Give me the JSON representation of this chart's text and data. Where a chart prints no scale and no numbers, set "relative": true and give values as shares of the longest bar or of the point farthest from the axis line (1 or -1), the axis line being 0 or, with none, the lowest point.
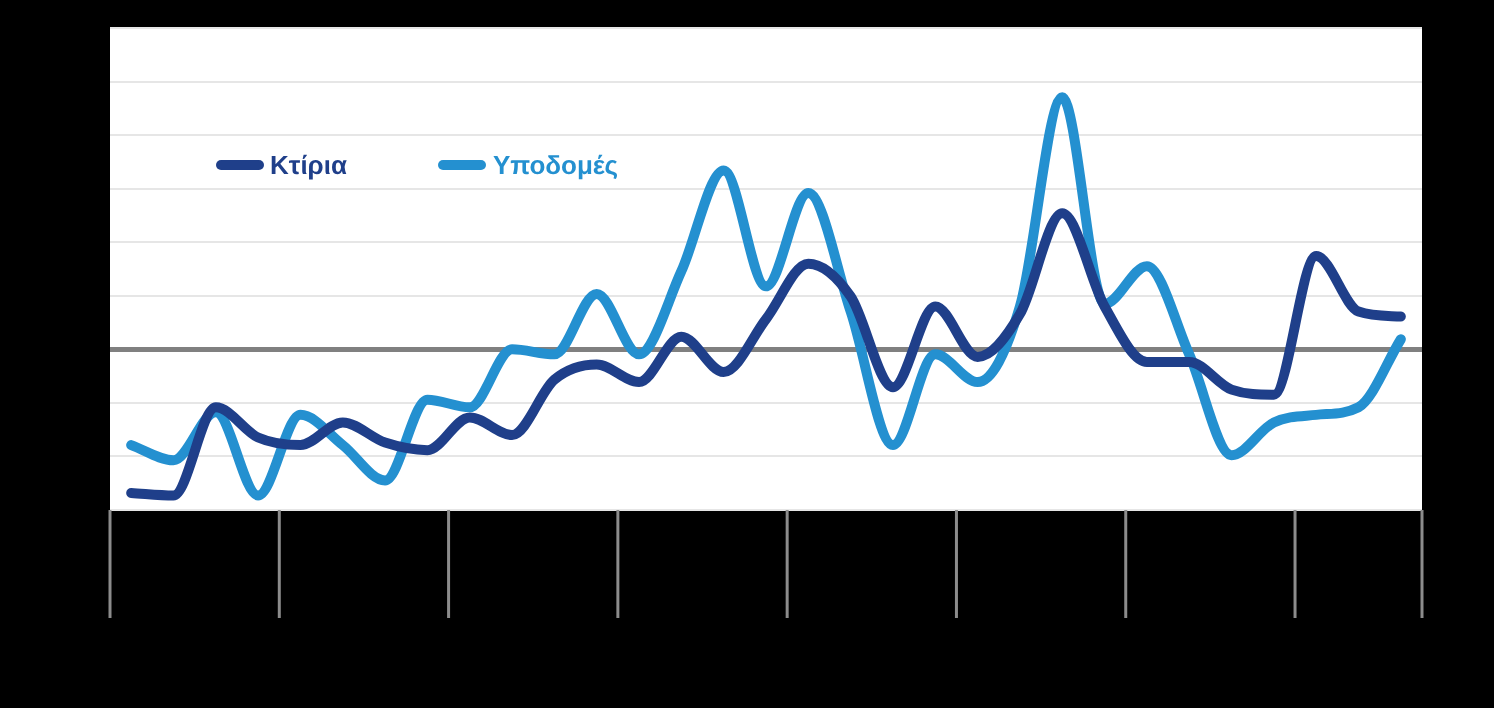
{
  "chart_data": {
    "type": "line",
    "relative": true,
    "categories": [
      null,
      null,
      null,
      null,
      null,
      null,
      null,
      null,
      null,
      null,
      null,
      null,
      null,
      null,
      null,
      null,
      null,
      null,
      null,
      null,
      null,
      null,
      null,
      null,
      null,
      null,
      null,
      null,
      null,
      null,
      null
    ],
    "series": [
      {
        "name": "Κτίρια",
        "color": "#1f3f8a",
        "values": [
          -0.57,
          -0.58,
          -0.23,
          -0.35,
          -0.38,
          -0.29,
          -0.37,
          -0.4,
          -0.27,
          -0.34,
          -0.12,
          -0.06,
          -0.13,
          0.05,
          -0.09,
          0.12,
          0.34,
          0.21,
          -0.15,
          0.17,
          -0.03,
          0.14,
          0.54,
          0.17,
          -0.05,
          -0.05,
          -0.16,
          -0.18,
          0.37,
          0.15,
          0.13
        ]
      },
      {
        "name": "Υποδομές",
        "color": "#2490d0",
        "values": [
          -0.38,
          -0.44,
          -0.25,
          -0.58,
          -0.26,
          -0.38,
          -0.52,
          -0.2,
          -0.23,
          0,
          -0.02,
          0.22,
          -0.02,
          0.31,
          0.71,
          0.25,
          0.62,
          0.15,
          -0.38,
          -0.02,
          -0.13,
          0.17,
          1,
          0.18,
          0.33,
          -0.02,
          -0.42,
          -0.29,
          -0.26,
          -0.23,
          0.04
        ]
      }
    ],
    "grid": "y",
    "legend": "top left",
    "marker": "none"
  }
}
